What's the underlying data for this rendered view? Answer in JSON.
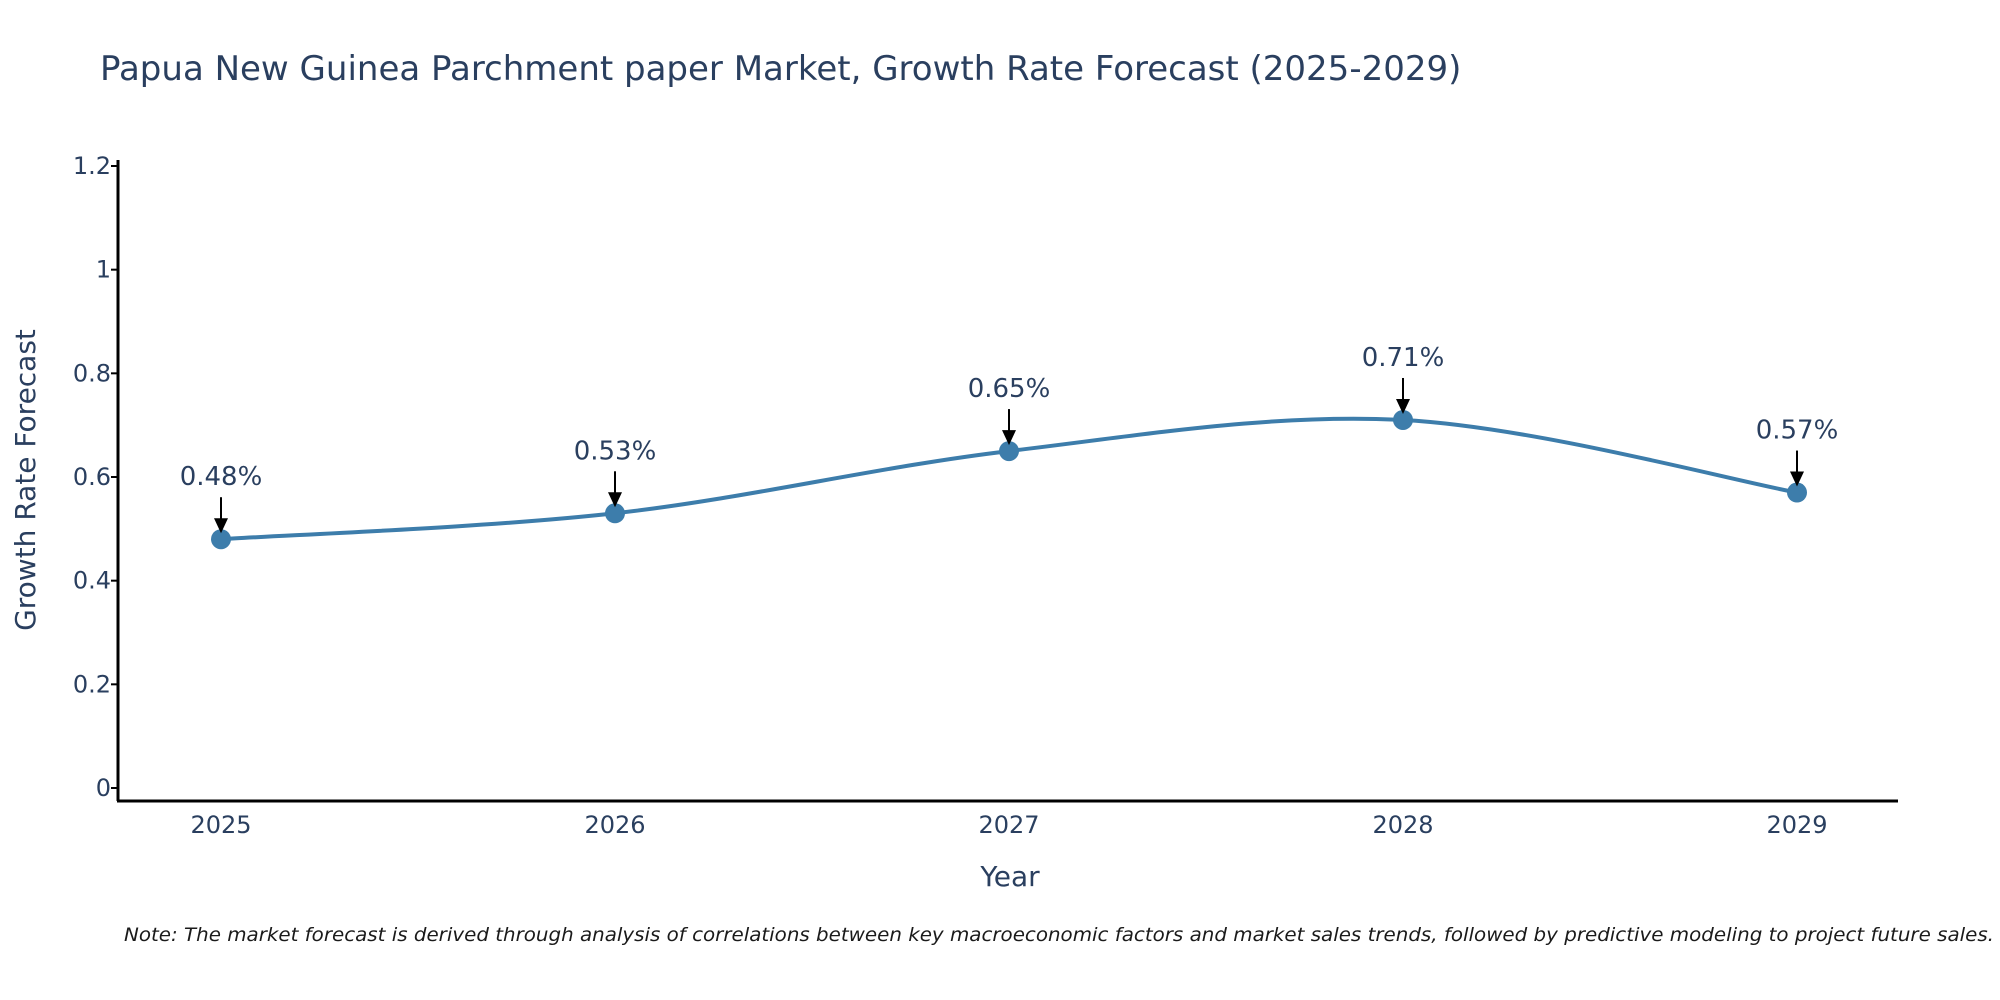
{
  "chart_data": {
    "type": "line",
    "title": "Papua New Guinea Parchment paper Market, Growth Rate Forecast (2025-2029)",
    "xlabel": "Year",
    "ylabel": "Growth Rate Forecast",
    "categories": [
      "2025",
      "2026",
      "2027",
      "2028",
      "2029"
    ],
    "values": [
      0.48,
      0.53,
      0.65,
      0.71,
      0.57
    ],
    "labels": [
      "0.48%",
      "0.53%",
      "0.65%",
      "0.71%",
      "0.57%"
    ],
    "ylim": [
      0,
      1.2
    ],
    "yticks": [
      "0",
      "0.2",
      "0.4",
      "0.6",
      "0.8",
      "1",
      "1.2"
    ],
    "grid": false,
    "line_color": "#3d7dab",
    "note": "Note: The market forecast is derived through analysis of correlations between key macroeconomic factors and market sales trends, followed by predictive modeling to project future sales."
  }
}
